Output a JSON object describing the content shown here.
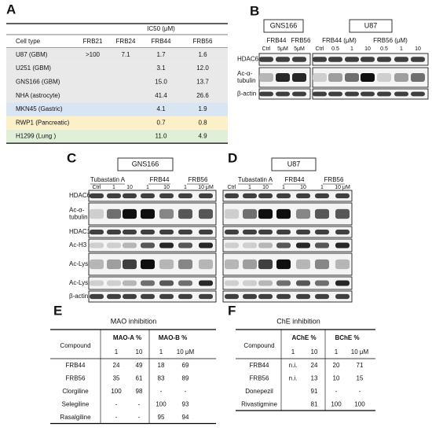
{
  "panel_a": {
    "label": "A",
    "header": "IC50 (μM)",
    "columns": [
      "Cell type",
      "FRB21",
      "FRB24",
      "FRB44",
      "FRB56"
    ],
    "rows": [
      [
        "U87 (GBM)",
        ">100",
        "7.1",
        "1.7",
        "1.6"
      ],
      [
        "U251 (GBM)",
        null,
        null,
        "3.1",
        "12.0"
      ],
      [
        "GNS166 (GBM)",
        null,
        null,
        "15.0",
        "13.7"
      ],
      [
        "NHA (astrocyte)",
        null,
        null,
        "41.4",
        "26.6"
      ],
      [
        "MKN45 (Gastric)",
        null,
        null,
        "4.1",
        "1.9"
      ],
      [
        "RWP1 (Pancreatic)",
        null,
        null,
        "0.7",
        "0.8"
      ],
      [
        "H1299 (Lung )",
        null,
        null,
        "11.0",
        "4.9"
      ]
    ]
  },
  "panel_b": {
    "label": "B",
    "groups": [
      {
        "cell": "GNS166",
        "treatments": [
          "FRB44",
          "FRB56"
        ],
        "lanes": [
          "Ctrl",
          "5μM",
          "5μM"
        ]
      },
      {
        "cell": "U87",
        "treatments": [
          "FRB44 (μM)",
          "FRB56 (μM)"
        ],
        "lanes": [
          "Ctrl",
          "0.5",
          "1",
          "10",
          "0.5",
          "1",
          "10"
        ]
      }
    ],
    "blots": [
      [
        "HDAC6"
      ],
      [
        "Ac-α-",
        "tubulin"
      ],
      [
        "β-actin"
      ]
    ]
  },
  "panel_c": {
    "label": "C",
    "cell": "GNS166",
    "treatments": [
      "Tubastatin A",
      "FRB44",
      "FRB56"
    ],
    "lanes": [
      "Ctrl",
      "1",
      "10",
      "1",
      "10",
      "1",
      "10 μM"
    ],
    "blots": [
      [
        "HDAC6"
      ],
      [
        "Ac-α-",
        "tubulin"
      ],
      [
        "HDAC1"
      ],
      [
        "Ac-H3"
      ],
      [
        "Ac-Lys"
      ],
      [
        "Ac-Lys"
      ],
      [
        "β-actin"
      ]
    ]
  },
  "panel_d": {
    "label": "D",
    "cell": "U87",
    "treatments": [
      "Tubastatin A",
      "FRB44",
      "FRB56"
    ],
    "lanes": [
      "Ctrl",
      "1",
      "10",
      "1",
      "10",
      "1",
      "10 μM"
    ]
  },
  "panel_e": {
    "label": "E",
    "title": "MAO inhibition",
    "columns": [
      "Compound",
      "MAO-A %",
      "MAO-B %"
    ],
    "subcolumns": [
      "1",
      "10",
      "1",
      "10 μM"
    ],
    "rows": [
      [
        "FRB44",
        "24",
        "49",
        "18",
        "69"
      ],
      [
        "FRB56",
        "35",
        "61",
        "83",
        "89"
      ],
      [
        "Clorgiline",
        "100",
        "98",
        "-",
        "-"
      ],
      [
        "Selegiline",
        "-",
        "-",
        "100",
        "93"
      ],
      [
        "Rasalgiline",
        "-",
        "-",
        "95",
        "94"
      ]
    ]
  },
  "panel_f": {
    "label": "F",
    "title": "ChE inhibition",
    "columns": [
      "Compound",
      "AChE %",
      "BChE %"
    ],
    "subcolumns": [
      "1",
      "10",
      "1",
      "10 μM"
    ],
    "rows": [
      [
        "FRB44",
        "n.i.",
        "24",
        "20",
        "71"
      ],
      [
        "FRB56",
        "n.i.",
        "13",
        "10",
        "15"
      ],
      [
        "Donepezil",
        null,
        "91",
        "-",
        "-"
      ],
      [
        "Rivastigmine",
        null,
        "81",
        "100",
        "100"
      ]
    ]
  }
}
